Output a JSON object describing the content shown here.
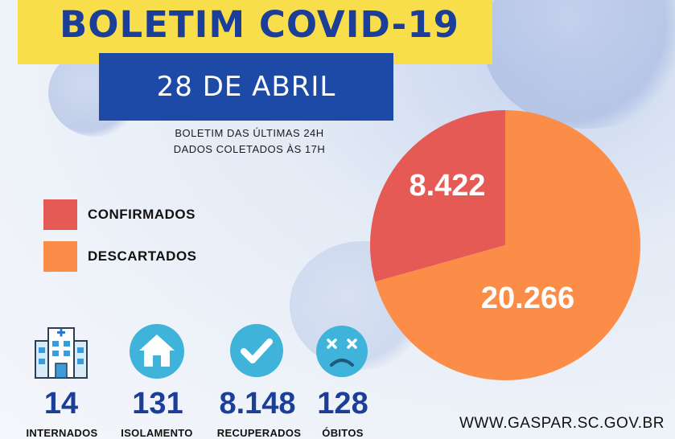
{
  "header": {
    "title": "BOLETIM COVID-19",
    "date": "28 DE ABRIL",
    "subtitle_line1": "BOLETIM DAS ÚLTIMAS 24H",
    "subtitle_line2": "DADOS COLETADOS ÀS  17H"
  },
  "legend": [
    {
      "label": "CONFIRMADOS",
      "color": "#e65a55"
    },
    {
      "label": "DESCARTADOS",
      "color": "#fb8d48"
    }
  ],
  "chart_data": {
    "type": "pie",
    "slices": [
      {
        "label": "CONFIRMADOS",
        "value": 8422,
        "display": "8.422",
        "color": "#e65a55"
      },
      {
        "label": "DESCARTADOS",
        "value": 20266,
        "display": "20.266",
        "color": "#fb8d48"
      }
    ],
    "legend_position": "left"
  },
  "stats": [
    {
      "value": "14",
      "label": "INTERNADOS",
      "icon": "hospital-icon"
    },
    {
      "value": "131",
      "label": "ISOLAMENTO",
      "icon": "house-icon"
    },
    {
      "value": "8.148",
      "label": "RECUPERADOS",
      "icon": "checkmark-icon"
    },
    {
      "value": "128",
      "label": "ÓBITOS",
      "icon": "dead-face-icon"
    }
  ],
  "footer": {
    "website": "WWW.GASPAR.SC.GOV.BR"
  }
}
